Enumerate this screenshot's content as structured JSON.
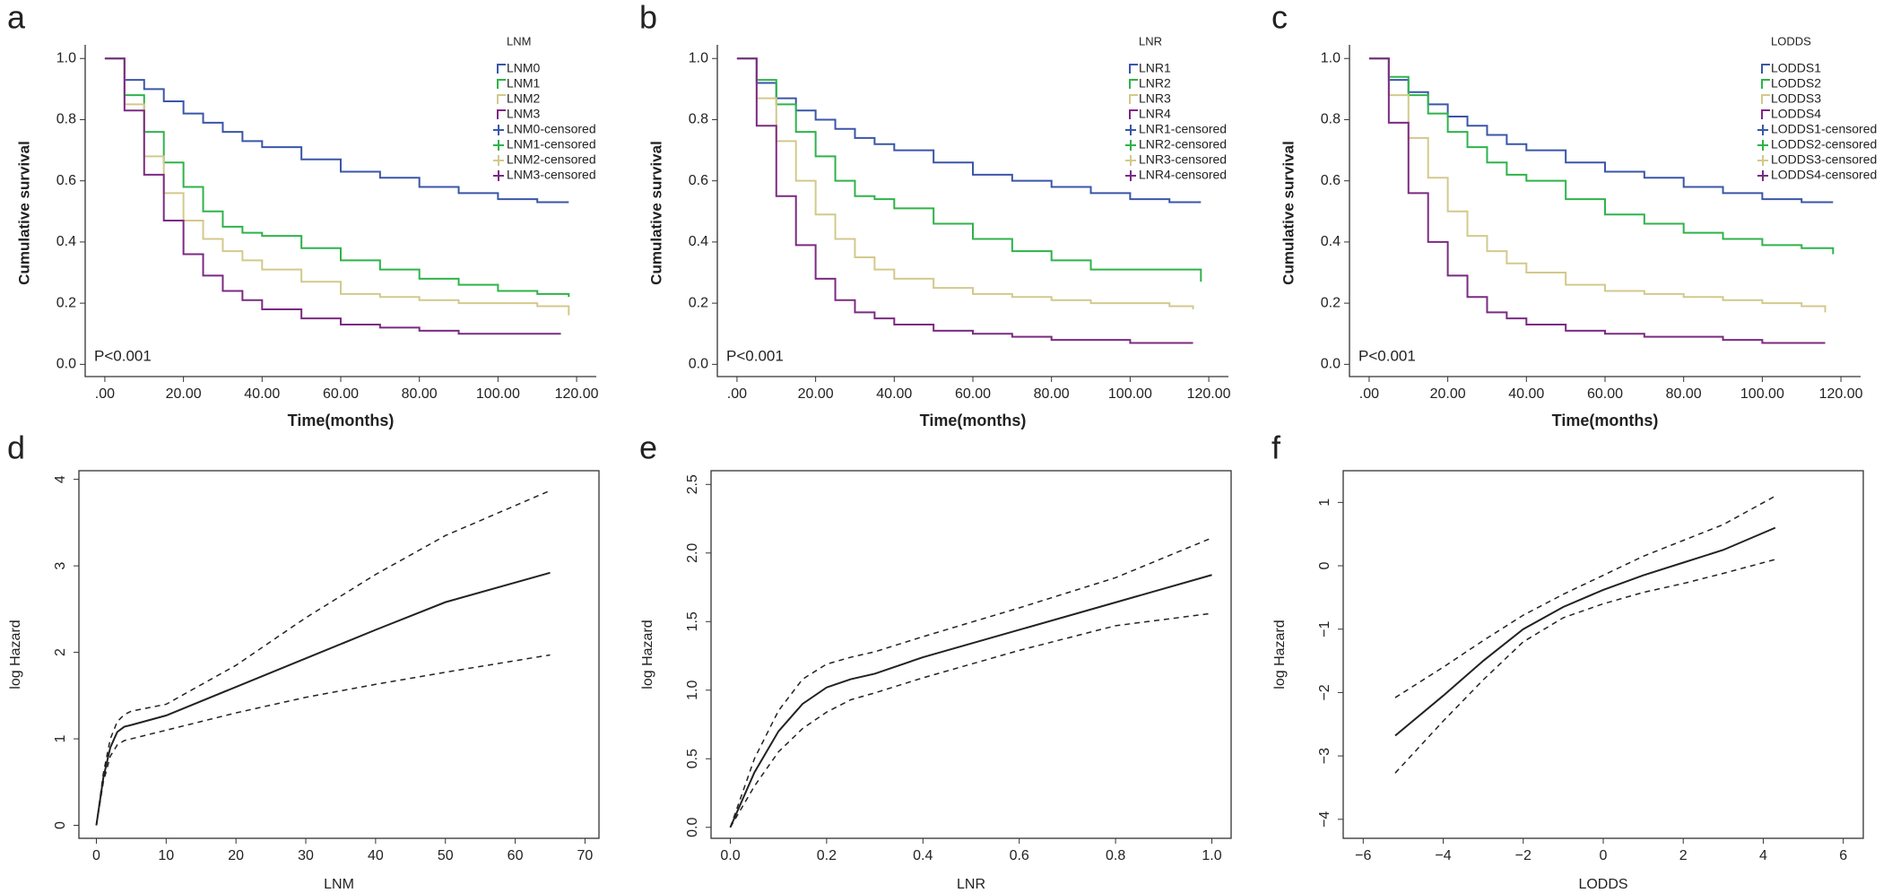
{
  "chart_data": [
    {
      "type": "step",
      "panel": "a",
      "xlabel": "Time(months)",
      "ylabel": "Cumulative survival",
      "legend_title": "LNM",
      "annotation": "P<0.001",
      "xlim": [
        -5,
        125
      ],
      "ylim": [
        -0.04,
        1.03
      ],
      "xticks": [
        {
          "value": 0,
          "label": ".00"
        },
        {
          "value": 20,
          "label": "20.00"
        },
        {
          "value": 40,
          "label": "40.00"
        },
        {
          "value": 60,
          "label": "60.00"
        },
        {
          "value": 80,
          "label": "80.00"
        },
        {
          "value": 100,
          "label": "100.00"
        },
        {
          "value": 120,
          "label": "120.00"
        }
      ],
      "yticks": [
        {
          "value": 0,
          "label": "0.0"
        },
        0.2,
        0.4,
        0.6,
        0.8,
        {
          "value": 1,
          "label": "1.0"
        }
      ],
      "series": [
        {
          "name": "LNM0",
          "censored_name": "LNM0-censored",
          "color": "#3a56a8",
          "x": [
            0,
            5,
            10,
            15,
            20,
            25,
            30,
            35,
            40,
            50,
            60,
            70,
            80,
            90,
            100,
            110,
            118
          ],
          "values": [
            1,
            0.93,
            0.9,
            0.86,
            0.82,
            0.79,
            0.76,
            0.73,
            0.71,
            0.67,
            0.63,
            0.61,
            0.58,
            0.56,
            0.54,
            0.53,
            0.53
          ]
        },
        {
          "name": "LNM1",
          "censored_name": "LNM1-censored",
          "color": "#2fb34a",
          "x": [
            0,
            5,
            10,
            15,
            20,
            25,
            30,
            35,
            40,
            50,
            60,
            70,
            80,
            90,
            100,
            110,
            118
          ],
          "values": [
            1,
            0.88,
            0.76,
            0.66,
            0.58,
            0.5,
            0.45,
            0.43,
            0.42,
            0.38,
            0.34,
            0.31,
            0.28,
            0.26,
            0.24,
            0.23,
            0.22
          ]
        },
        {
          "name": "LNM2",
          "censored_name": "LNM2-censored",
          "color": "#d2c98c",
          "x": [
            0,
            5,
            10,
            15,
            20,
            25,
            30,
            35,
            40,
            50,
            60,
            70,
            80,
            90,
            100,
            110,
            118
          ],
          "values": [
            1,
            0.85,
            0.68,
            0.56,
            0.47,
            0.41,
            0.37,
            0.34,
            0.31,
            0.27,
            0.23,
            0.22,
            0.21,
            0.2,
            0.2,
            0.19,
            0.16
          ]
        },
        {
          "name": "LNM3",
          "censored_name": "LNM3-censored",
          "color": "#7b2a82",
          "x": [
            0,
            5,
            10,
            15,
            20,
            25,
            30,
            35,
            40,
            50,
            60,
            70,
            80,
            90,
            100,
            116
          ],
          "values": [
            1,
            0.83,
            0.62,
            0.47,
            0.36,
            0.29,
            0.24,
            0.21,
            0.18,
            0.15,
            0.13,
            0.12,
            0.11,
            0.1,
            0.1,
            0.1
          ]
        }
      ]
    },
    {
      "type": "step",
      "panel": "b",
      "xlabel": "Time(months)",
      "ylabel": "Cumulative survival",
      "legend_title": "LNR",
      "annotation": "P<0.001",
      "xlim": [
        -5,
        125
      ],
      "ylim": [
        -0.04,
        1.03
      ],
      "xticks": [
        {
          "value": 0,
          "label": ".00"
        },
        {
          "value": 20,
          "label": "20.00"
        },
        {
          "value": 40,
          "label": "40.00"
        },
        {
          "value": 60,
          "label": "60.00"
        },
        {
          "value": 80,
          "label": "80.00"
        },
        {
          "value": 100,
          "label": "100.00"
        },
        {
          "value": 120,
          "label": "120.00"
        }
      ],
      "yticks": [
        {
          "value": 0,
          "label": "0.0"
        },
        0.2,
        0.4,
        0.6,
        0.8,
        {
          "value": 1,
          "label": "1.0"
        }
      ],
      "series": [
        {
          "name": "LNR1",
          "censored_name": "LNR1-censored",
          "color": "#3a56a8",
          "x": [
            0,
            5,
            10,
            15,
            20,
            25,
            30,
            35,
            40,
            50,
            60,
            70,
            80,
            90,
            100,
            110,
            118
          ],
          "values": [
            1,
            0.92,
            0.87,
            0.83,
            0.8,
            0.77,
            0.74,
            0.72,
            0.7,
            0.66,
            0.62,
            0.6,
            0.58,
            0.56,
            0.54,
            0.53,
            0.53
          ]
        },
        {
          "name": "LNR2",
          "censored_name": "LNR2-censored",
          "color": "#2fb34a",
          "x": [
            0,
            5,
            10,
            15,
            20,
            25,
            30,
            35,
            40,
            50,
            60,
            70,
            80,
            90,
            100,
            110,
            118
          ],
          "values": [
            1,
            0.93,
            0.85,
            0.76,
            0.68,
            0.6,
            0.55,
            0.54,
            0.51,
            0.46,
            0.41,
            0.37,
            0.34,
            0.31,
            0.31,
            0.31,
            0.27
          ]
        },
        {
          "name": "LNR3",
          "censored_name": "LNR3-censored",
          "color": "#d2c98c",
          "x": [
            0,
            5,
            10,
            15,
            20,
            25,
            30,
            35,
            40,
            50,
            60,
            70,
            80,
            90,
            100,
            110,
            116
          ],
          "values": [
            1,
            0.87,
            0.73,
            0.6,
            0.49,
            0.41,
            0.35,
            0.31,
            0.28,
            0.25,
            0.23,
            0.22,
            0.21,
            0.2,
            0.2,
            0.19,
            0.18
          ]
        },
        {
          "name": "LNR4",
          "censored_name": "LNR4-censored",
          "color": "#7b2a82",
          "x": [
            0,
            5,
            10,
            15,
            20,
            25,
            30,
            35,
            40,
            50,
            60,
            70,
            80,
            90,
            100,
            116
          ],
          "values": [
            1,
            0.78,
            0.55,
            0.39,
            0.28,
            0.21,
            0.17,
            0.15,
            0.13,
            0.11,
            0.1,
            0.09,
            0.08,
            0.08,
            0.07,
            0.07
          ]
        }
      ]
    },
    {
      "type": "step",
      "panel": "c",
      "xlabel": "Time(months)",
      "ylabel": "Cumulative survival",
      "legend_title": "LODDS",
      "annotation": "P<0.001",
      "xlim": [
        -5,
        125
      ],
      "ylim": [
        -0.04,
        1.03
      ],
      "xticks": [
        {
          "value": 0,
          "label": ".00"
        },
        {
          "value": 20,
          "label": "20.00"
        },
        {
          "value": 40,
          "label": "40.00"
        },
        {
          "value": 60,
          "label": "60.00"
        },
        {
          "value": 80,
          "label": "80.00"
        },
        {
          "value": 100,
          "label": "100.00"
        },
        {
          "value": 120,
          "label": "120.00"
        }
      ],
      "yticks": [
        {
          "value": 0,
          "label": "0.0"
        },
        0.2,
        0.4,
        0.6,
        0.8,
        {
          "value": 1,
          "label": "1.0"
        }
      ],
      "series": [
        {
          "name": "LODDS1",
          "censored_name": "LODDS1-censored",
          "color": "#3a56a8",
          "x": [
            0,
            5,
            10,
            15,
            20,
            25,
            30,
            35,
            40,
            50,
            60,
            70,
            80,
            90,
            100,
            110,
            118
          ],
          "values": [
            1,
            0.93,
            0.89,
            0.85,
            0.81,
            0.78,
            0.75,
            0.72,
            0.7,
            0.66,
            0.63,
            0.61,
            0.58,
            0.56,
            0.54,
            0.53,
            0.53
          ]
        },
        {
          "name": "LODDS2",
          "censored_name": "LODDS2-censored",
          "color": "#2fb34a",
          "x": [
            0,
            5,
            10,
            15,
            20,
            25,
            30,
            35,
            40,
            50,
            60,
            70,
            80,
            90,
            100,
            110,
            118
          ],
          "values": [
            1,
            0.94,
            0.88,
            0.82,
            0.76,
            0.71,
            0.66,
            0.62,
            0.6,
            0.54,
            0.49,
            0.46,
            0.43,
            0.41,
            0.39,
            0.38,
            0.36
          ]
        },
        {
          "name": "LODDS3",
          "censored_name": "LODDS3-censored",
          "color": "#d2c98c",
          "x": [
            0,
            5,
            10,
            15,
            20,
            25,
            30,
            35,
            40,
            50,
            60,
            70,
            80,
            90,
            100,
            110,
            116
          ],
          "values": [
            1,
            0.88,
            0.74,
            0.61,
            0.5,
            0.42,
            0.37,
            0.33,
            0.3,
            0.26,
            0.24,
            0.23,
            0.22,
            0.21,
            0.2,
            0.19,
            0.17
          ]
        },
        {
          "name": "LODDS4",
          "censored_name": "LODDS4-censored",
          "color": "#7b2a82",
          "x": [
            0,
            5,
            10,
            15,
            20,
            25,
            30,
            35,
            40,
            50,
            60,
            70,
            80,
            90,
            100,
            116
          ],
          "values": [
            1,
            0.79,
            0.56,
            0.4,
            0.29,
            0.22,
            0.17,
            0.15,
            0.13,
            0.11,
            0.1,
            0.09,
            0.09,
            0.08,
            0.07,
            0.07
          ]
        }
      ]
    },
    {
      "type": "line",
      "panel": "d",
      "xlabel": "LNM",
      "ylabel": "log Hazard",
      "xlim": [
        -2.5,
        72
      ],
      "ylim": [
        -0.15,
        4.1
      ],
      "xticks": [
        0,
        10,
        20,
        30,
        40,
        50,
        60,
        70
      ],
      "yticks": [
        0,
        1,
        2,
        3,
        4
      ],
      "x": [
        0,
        1,
        2,
        3,
        4,
        5,
        10,
        20,
        30,
        40,
        50,
        65
      ],
      "values": [
        0,
        0.55,
        0.9,
        1.08,
        1.14,
        1.16,
        1.27,
        1.6,
        1.93,
        2.26,
        2.58,
        2.92
      ],
      "lower": [
        0,
        0.5,
        0.8,
        0.93,
        0.98,
        1.0,
        1.1,
        1.3,
        1.48,
        1.63,
        1.77,
        1.97
      ],
      "upper": [
        0,
        0.6,
        1.0,
        1.2,
        1.28,
        1.32,
        1.4,
        1.85,
        2.4,
        2.9,
        3.35,
        3.87
      ]
    },
    {
      "type": "line",
      "panel": "e",
      "xlabel": "LNR",
      "ylabel": "log Hazard",
      "xlim": [
        -0.04,
        1.04
      ],
      "ylim": [
        -0.08,
        2.6
      ],
      "xticks": [
        {
          "value": 0,
          "label": "0.0"
        },
        0.2,
        0.4,
        0.6,
        0.8,
        {
          "value": 1,
          "label": "1.0"
        }
      ],
      "yticks": [
        {
          "value": 0,
          "label": "0.0"
        },
        0.5,
        {
          "value": 1,
          "label": "1.0"
        },
        1.5,
        {
          "value": 2,
          "label": "2.0"
        },
        2.5
      ],
      "x": [
        0,
        0.05,
        0.1,
        0.15,
        0.2,
        0.25,
        0.3,
        0.4,
        0.6,
        0.8,
        1.0
      ],
      "values": [
        0,
        0.4,
        0.7,
        0.9,
        1.02,
        1.08,
        1.12,
        1.24,
        1.44,
        1.64,
        1.84
      ],
      "lower": [
        0,
        0.3,
        0.55,
        0.72,
        0.84,
        0.93,
        0.98,
        1.09,
        1.29,
        1.47,
        1.56
      ],
      "upper": [
        0,
        0.5,
        0.85,
        1.08,
        1.19,
        1.24,
        1.28,
        1.39,
        1.6,
        1.82,
        2.11
      ]
    },
    {
      "type": "line",
      "panel": "f",
      "xlabel": "LODDS",
      "ylabel": "log Hazard",
      "xlim": [
        -6.5,
        6.5
      ],
      "ylim": [
        -4.3,
        1.5
      ],
      "xticks": [
        {
          "value": -6,
          "label": "−6"
        },
        {
          "value": -4,
          "label": "−4"
        },
        {
          "value": -2,
          "label": "−2"
        },
        0,
        2,
        4,
        6
      ],
      "yticks": [
        {
          "value": -4,
          "label": "−4"
        },
        {
          "value": -3,
          "label": "−3"
        },
        {
          "value": -2,
          "label": "−2"
        },
        {
          "value": -1,
          "label": "−1"
        },
        0,
        1
      ],
      "x": [
        -5.2,
        -4,
        -3,
        -2,
        -1,
        0,
        1,
        2,
        3,
        4.3
      ],
      "values": [
        -2.68,
        -2.05,
        -1.5,
        -1.0,
        -0.65,
        -0.38,
        -0.15,
        0.05,
        0.25,
        0.6
      ],
      "lower": [
        -3.27,
        -2.45,
        -1.8,
        -1.2,
        -0.82,
        -0.6,
        -0.42,
        -0.28,
        -0.12,
        0.1
      ],
      "upper": [
        -2.08,
        -1.6,
        -1.18,
        -0.78,
        -0.45,
        -0.15,
        0.15,
        0.4,
        0.65,
        1.1
      ]
    }
  ]
}
